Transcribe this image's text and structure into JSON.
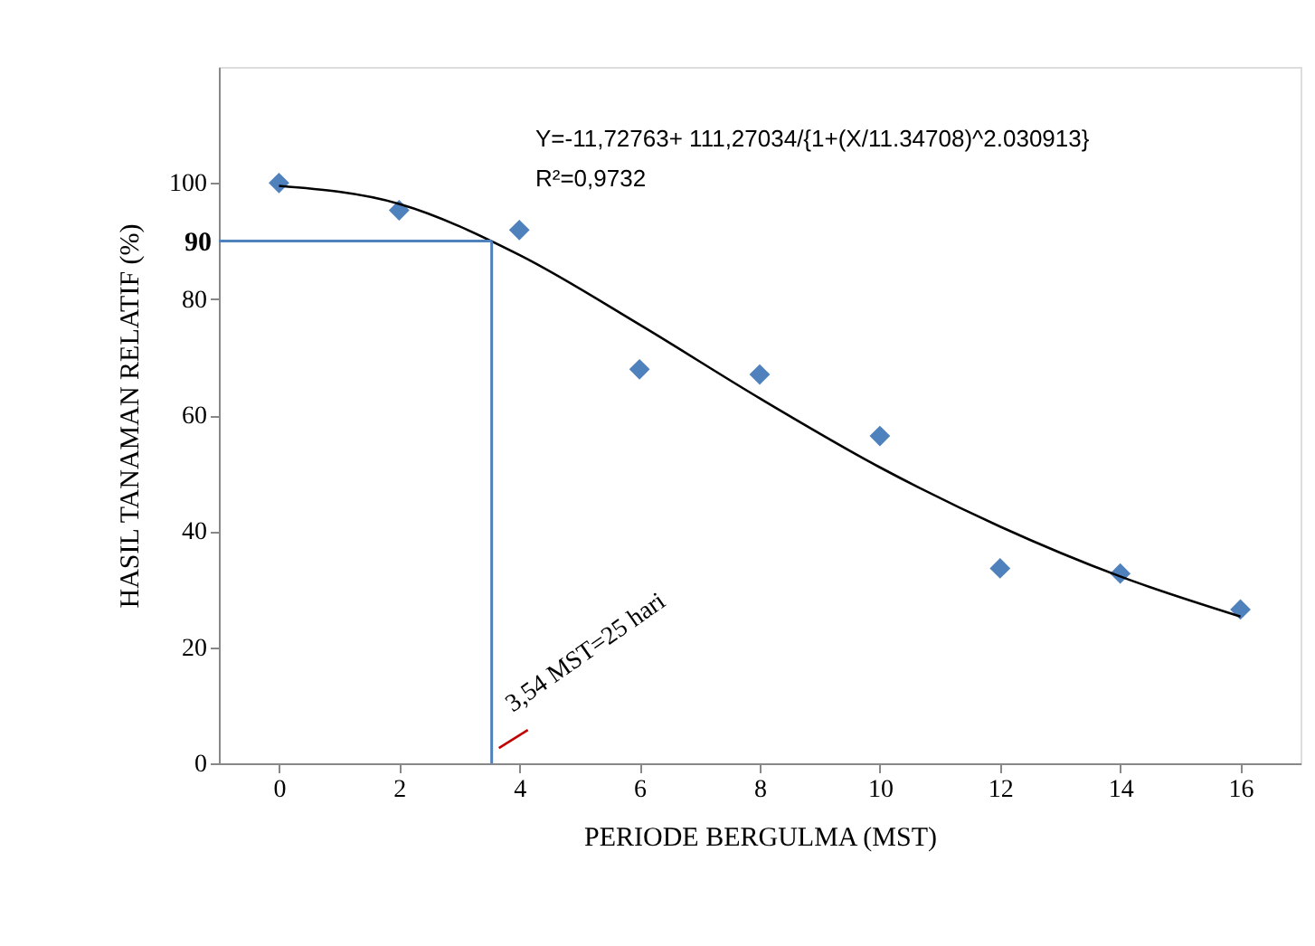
{
  "chart_data": {
    "type": "scatter",
    "xlabel": "PERIODE BERGULMA (MST)",
    "ylabel": "HASIL TANAMAN RELATIF (%)",
    "xlim": [
      -1,
      17
    ],
    "xticks": [
      0,
      2,
      4,
      6,
      8,
      10,
      12,
      14,
      16
    ],
    "ylim": [
      0,
      120
    ],
    "yticks": [
      0,
      20,
      40,
      60,
      80,
      100
    ],
    "grid": false,
    "series": [
      {
        "type": "scatter",
        "marker": "diamond",
        "color": "#4f81bd",
        "x": [
          0,
          2,
          4,
          6,
          8,
          10,
          12,
          14,
          16
        ],
        "values": [
          100,
          95.3,
          91.9,
          67.9,
          67,
          56.4,
          33.6,
          32.7,
          26.5
        ]
      },
      {
        "type": "line",
        "color": "#000000",
        "x": [
          0,
          2,
          4,
          6,
          8,
          10,
          12,
          14,
          16
        ],
        "values": [
          99.5,
          96.4,
          87.6,
          75.6,
          62.9,
          51,
          40.8,
          32.2,
          25.3
        ]
      }
    ],
    "ref_lines": [
      {
        "axis": "y",
        "value": 90,
        "label": "90",
        "color": "#4f81bd"
      },
      {
        "axis": "x",
        "value": 3.54,
        "color": "#4f81bd"
      }
    ],
    "annotations": [
      "Y=-11,72763+ 111,27034/{1+(X/11.34708)^2.030913}",
      "R²=0,9732",
      {
        "text": "3,54 MST=25 hari",
        "x": 3.54,
        "y": 2
      }
    ]
  }
}
